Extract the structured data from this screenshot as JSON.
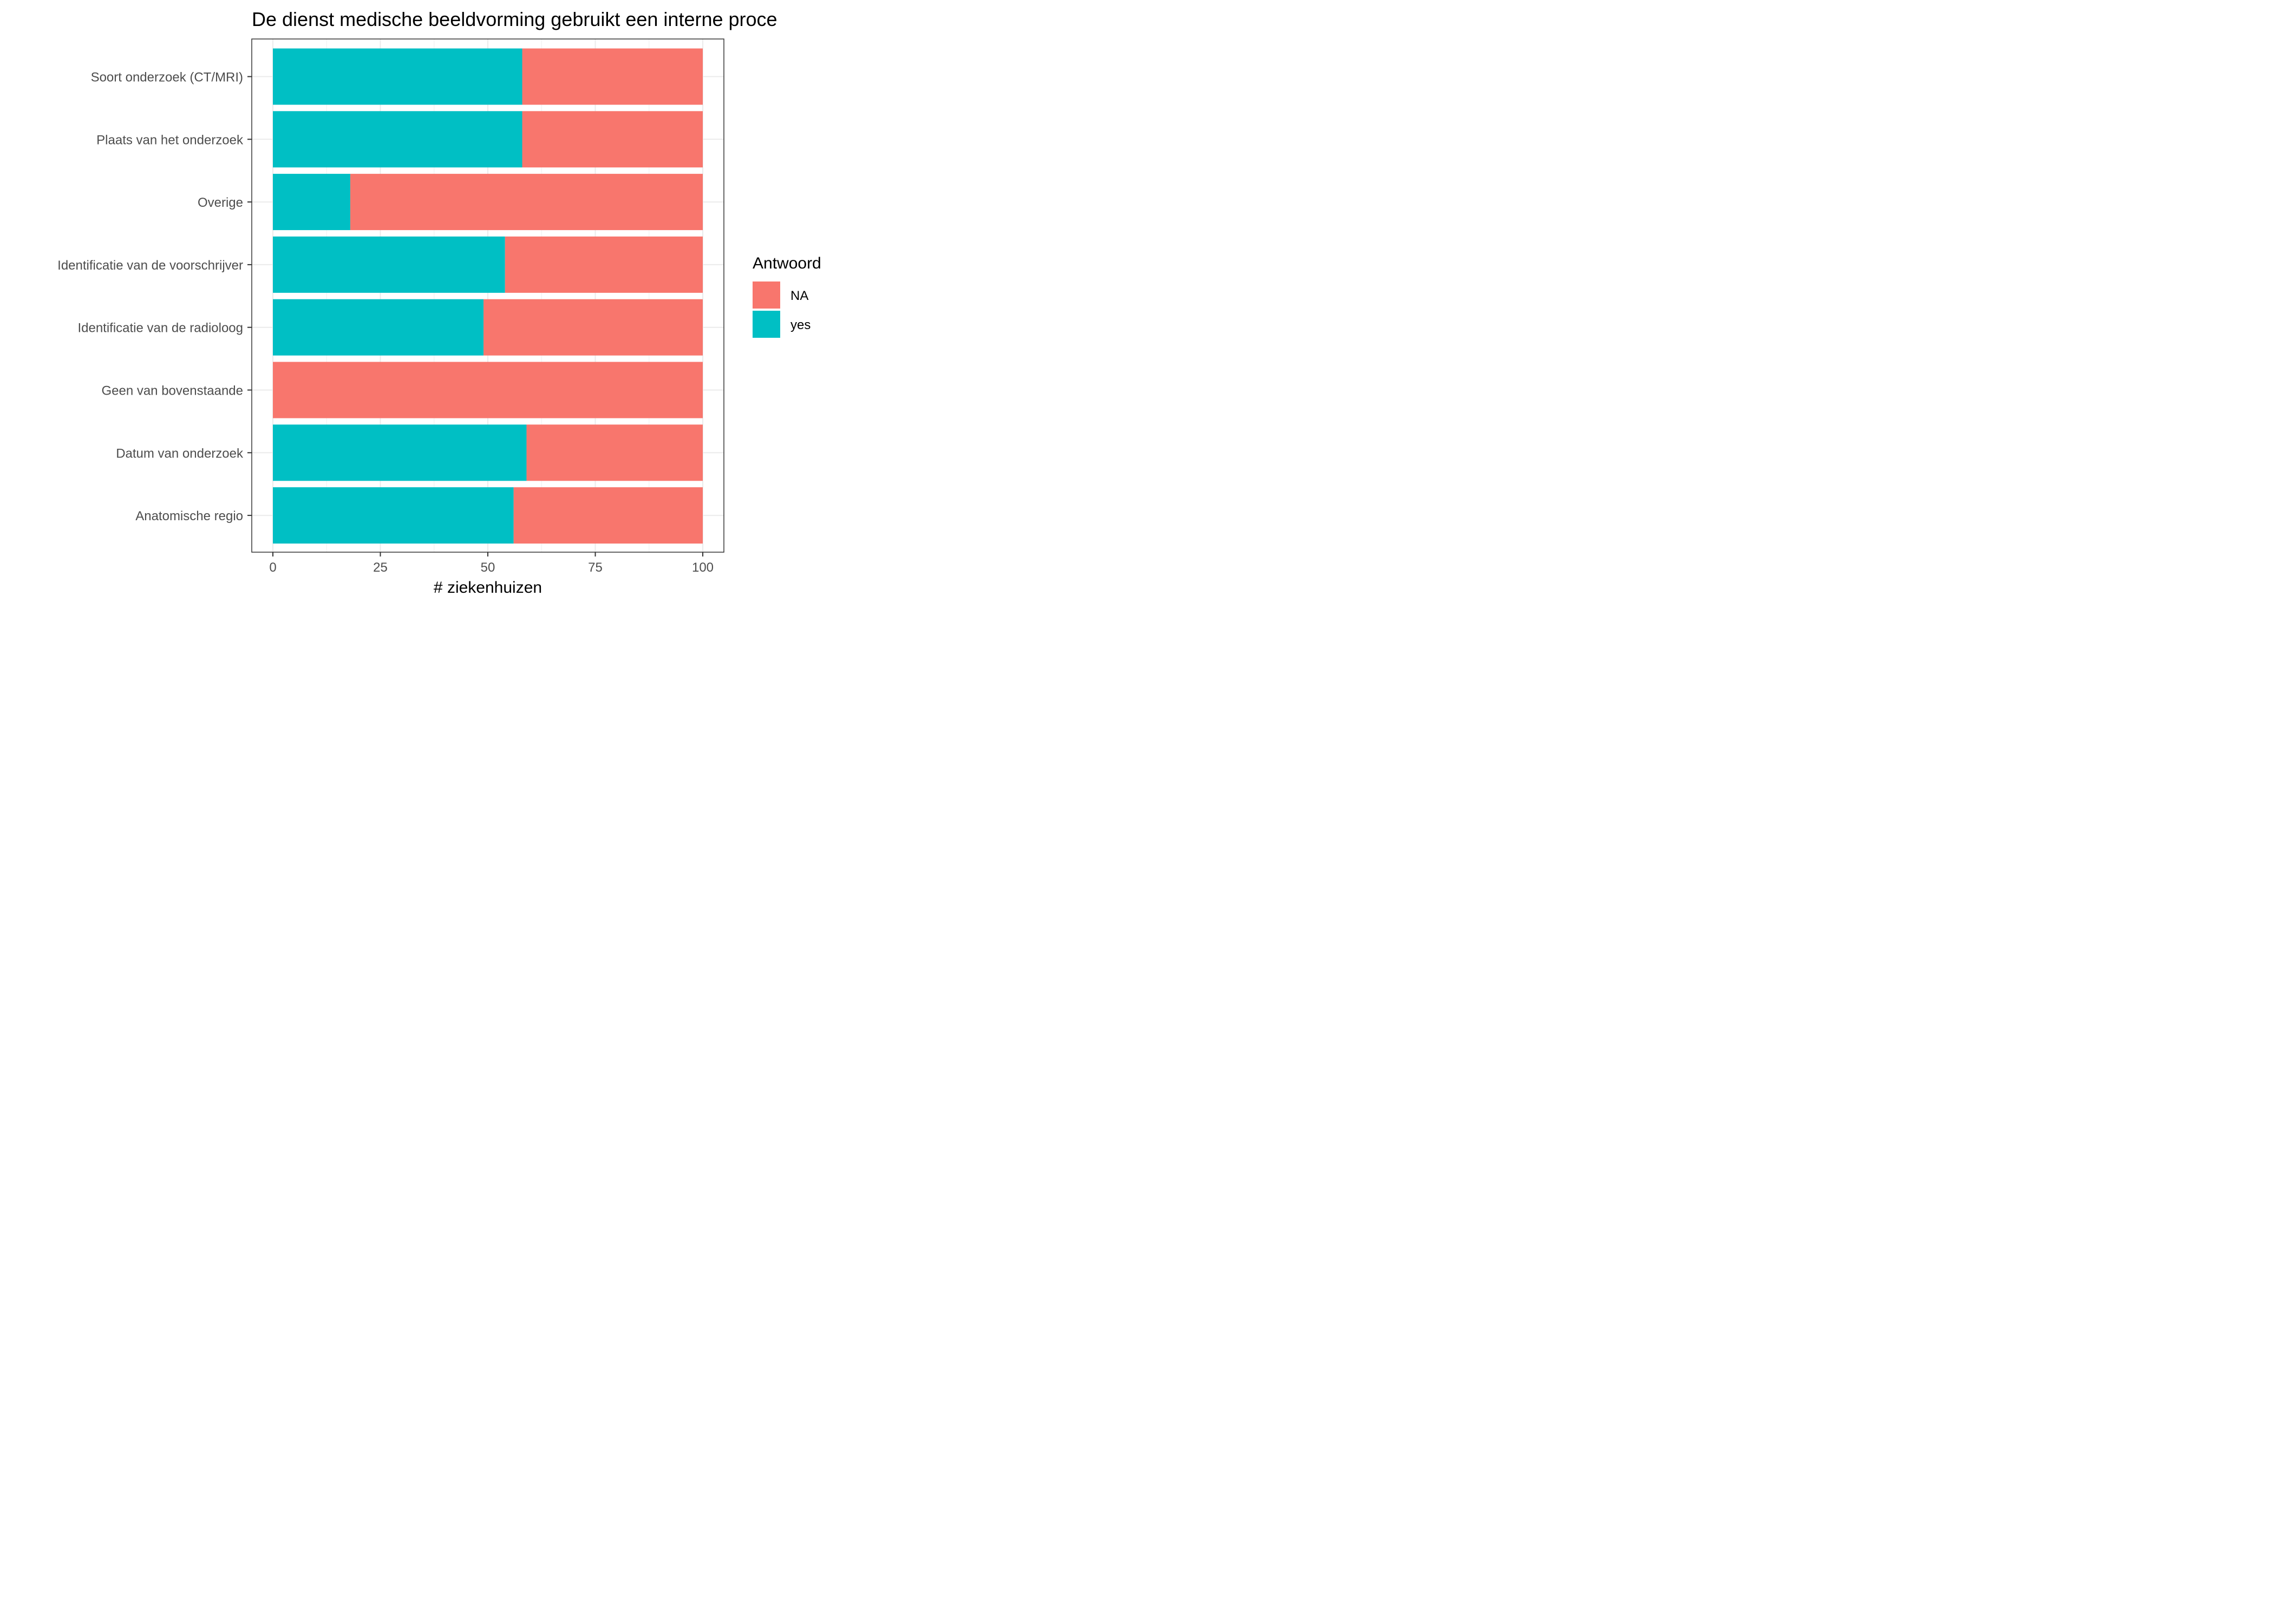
{
  "chart_data": {
    "type": "bar",
    "orientation": "horizontal",
    "stacked": true,
    "title": "De dienst medische beeldvorming gebruikt een interne proce",
    "xlabel": "# ziekenhuizen",
    "ylabel": "",
    "xlim": [
      0,
      100
    ],
    "xticks": [
      "0",
      "25",
      "50",
      "75",
      "100"
    ],
    "categories": [
      "Soort onderzoek (CT/MRI)",
      "Plaats van het onderzoek",
      "Overige",
      "Identificatie van de voorschrijver",
      "Identificatie van de radioloog",
      "Geen van bovenstaande",
      "Datum van onderzoek",
      "Anatomische regio"
    ],
    "series": [
      {
        "name": "yes",
        "color": "#00BFC4",
        "values": [
          58,
          58,
          18,
          54,
          49,
          0,
          59,
          56
        ]
      },
      {
        "name": "NA",
        "color": "#F8766D",
        "values": [
          42,
          42,
          82,
          46,
          51,
          100,
          41,
          44
        ]
      }
    ],
    "legend": {
      "title": "Antwoord",
      "position": "right",
      "entries": [
        {
          "label": "NA",
          "color": "#F8766D"
        },
        {
          "label": "yes",
          "color": "#00BFC4"
        }
      ]
    },
    "grid": true
  }
}
